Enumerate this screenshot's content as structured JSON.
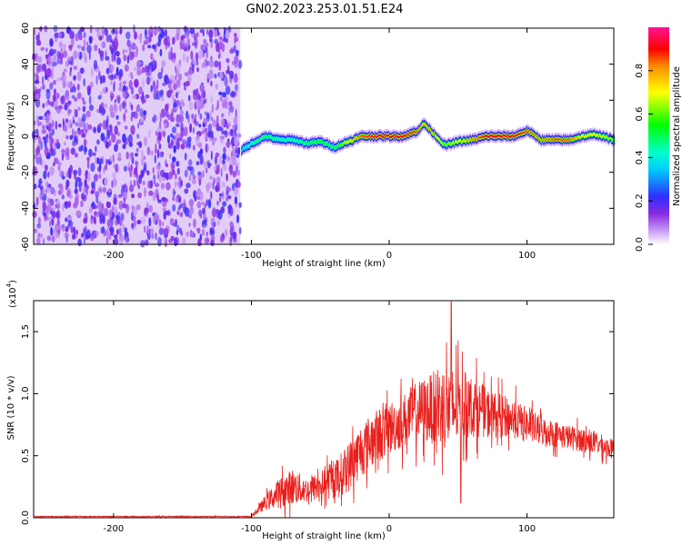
{
  "figure": {
    "title": "GN02.2023.253.01.51.E24"
  },
  "chart_data": [
    {
      "type": "heatmap",
      "xlabel": "Height of straight line (km)",
      "ylabel": "Frequency (Hz)",
      "xlim": [
        -258,
        163
      ],
      "ylim": [
        -60,
        60
      ],
      "xticks": [
        -200,
        -100,
        0,
        100
      ],
      "yticks": [
        -60,
        -40,
        -20,
        0,
        20,
        40,
        60
      ],
      "colorbar": {
        "label": "Normalized spectral amplitude",
        "range": [
          0,
          1
        ],
        "ticks": [
          0.0,
          0.2,
          0.4,
          0.6,
          0.8
        ],
        "colormap": [
          "#ffffff",
          "#8a2be2",
          "#2f2fff",
          "#00ffff",
          "#00ff00",
          "#ffff00",
          "#ff0000",
          "#ff1493"
        ]
      },
      "noise_region_x": [
        -258,
        -108
      ],
      "ridge": {
        "x": [
          -108,
          -100,
          -90,
          -80,
          -70,
          -60,
          -50,
          -40,
          -30,
          -20,
          -10,
          0,
          10,
          20,
          25,
          30,
          40,
          50,
          60,
          70,
          80,
          90,
          100,
          110,
          120,
          130,
          140,
          150,
          163
        ],
        "frequency": [
          -8,
          -4,
          0,
          -2,
          -2,
          -4,
          -3,
          -6,
          -3,
          0,
          0,
          0,
          0,
          3,
          7,
          3,
          -5,
          -3,
          -2,
          0,
          0,
          0,
          3,
          -2,
          -2,
          -2,
          0,
          1,
          -2
        ],
        "amplitude": [
          0.35,
          0.45,
          0.5,
          0.45,
          0.45,
          0.5,
          0.55,
          0.5,
          0.7,
          0.85,
          0.9,
          0.9,
          0.9,
          0.85,
          0.75,
          0.8,
          0.6,
          0.7,
          0.8,
          0.9,
          0.9,
          0.9,
          0.85,
          0.8,
          0.85,
          0.85,
          0.7,
          0.7,
          0.6
        ]
      },
      "grid": false
    },
    {
      "type": "line",
      "xlabel": "Height of straight line (km)",
      "ylabel": "SNR (10 * v/v)",
      "yscale_label": "(x10",
      "yscale_exponent": "4",
      "xlim": [
        -258,
        163
      ],
      "ylim": [
        0,
        1.75
      ],
      "xticks": [
        -200,
        -100,
        0,
        100
      ],
      "yticks": [
        0.0,
        0.5,
        1.0,
        1.5
      ],
      "ytick_labels": [
        "0.0",
        "0.5",
        "1.0",
        "1.5"
      ],
      "series": [
        {
          "color": "#e8201c",
          "envelope": {
            "x": [
              -258,
              -100,
              -90,
              -80,
              -70,
              -60,
              -50,
              -40,
              -30,
              -20,
              -10,
              0,
              10,
              20,
              30,
              40,
              45,
              50,
              60,
              70,
              80,
              90,
              100,
              110,
              120,
              130,
              140,
              150,
              163
            ],
            "base": [
              0.01,
              0.01,
              0.12,
              0.2,
              0.25,
              0.22,
              0.26,
              0.3,
              0.4,
              0.55,
              0.65,
              0.72,
              0.78,
              0.85,
              0.88,
              0.9,
              0.88,
              0.9,
              0.9,
              0.85,
              0.82,
              0.8,
              0.75,
              0.7,
              0.68,
              0.65,
              0.63,
              0.6,
              0.55
            ],
            "spread": [
              0.004,
              0.004,
              0.06,
              0.12,
              0.15,
              0.1,
              0.12,
              0.15,
              0.2,
              0.22,
              0.22,
              0.22,
              0.22,
              0.25,
              0.28,
              0.35,
              0.4,
              0.3,
              0.25,
              0.2,
              0.18,
              0.16,
              0.14,
              0.12,
              0.11,
              0.1,
              0.1,
              0.09,
              0.08
            ]
          },
          "peak": {
            "x": 45,
            "y": 1.74
          },
          "minimum": {
            "x": 52,
            "y": 0.12
          }
        }
      ],
      "grid": false
    }
  ]
}
